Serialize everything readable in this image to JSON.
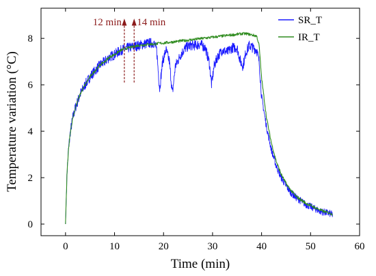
{
  "chart_data": {
    "type": "line",
    "title": "",
    "xlabel": "Time (min)",
    "ylabel": "Temperature variation (°C)",
    "xlim": [
      -5,
      60
    ],
    "ylim": [
      -0.5,
      9.3
    ],
    "xticks": [
      "0",
      "10",
      "20",
      "30",
      "40",
      "50",
      "60"
    ],
    "xtick_values": [
      0,
      10,
      20,
      30,
      40,
      50,
      60
    ],
    "yticks": [
      "0",
      "2",
      "4",
      "6",
      "8"
    ],
    "ytick_values": [
      0,
      2,
      4,
      6,
      8
    ],
    "grid": false,
    "legend_position": "top-right",
    "series": [
      {
        "name": "SR_T",
        "color": "#1a1aff",
        "style": "noisy",
        "x": [
          0,
          0.3,
          0.6,
          1,
          1.5,
          2,
          3,
          4,
          5,
          6,
          7,
          8,
          9,
          10,
          11,
          12,
          13,
          14,
          15,
          16,
          17,
          18,
          18.6,
          19.2,
          19.8,
          20.5,
          21.2,
          21.8,
          22.4,
          23.5,
          24.5,
          25.5,
          26.5,
          27.5,
          28.5,
          29.3,
          29.8,
          30.3,
          31,
          32,
          33,
          34,
          35,
          35.7,
          36.2,
          36.8,
          37.5,
          38.2,
          39,
          39.5,
          40,
          41,
          42,
          43,
          44,
          45,
          46,
          47,
          48,
          49,
          50,
          51,
          52,
          53,
          54,
          54.5
        ],
        "y": [
          0,
          2.2,
          3.2,
          4.0,
          4.6,
          5.0,
          5.6,
          6.0,
          6.35,
          6.6,
          6.85,
          7.0,
          7.2,
          7.3,
          7.45,
          7.55,
          7.6,
          7.65,
          7.7,
          7.75,
          7.8,
          7.8,
          7.5,
          5.8,
          7.0,
          7.5,
          7.0,
          5.6,
          6.8,
          7.3,
          7.6,
          7.7,
          7.7,
          7.75,
          7.6,
          7.0,
          6.0,
          6.8,
          7.2,
          7.5,
          7.4,
          7.6,
          7.6,
          7.0,
          6.8,
          7.4,
          7.7,
          7.6,
          7.5,
          7.0,
          5.5,
          4.2,
          3.2,
          2.5,
          2.0,
          1.65,
          1.35,
          1.15,
          1.0,
          0.85,
          0.75,
          0.65,
          0.55,
          0.5,
          0.45,
          0.4
        ]
      },
      {
        "name": "IR_T",
        "color": "#2e8b1e",
        "style": "smooth",
        "x": [
          0,
          0.3,
          0.6,
          1,
          1.5,
          2,
          3,
          4,
          5,
          6,
          7,
          8,
          9,
          10,
          11,
          12,
          13,
          14,
          15,
          16,
          17,
          18,
          19,
          20,
          22,
          24,
          26,
          28,
          30,
          32,
          34,
          36,
          37,
          38,
          39,
          39.5,
          40,
          41,
          42,
          43,
          44,
          45,
          46,
          47,
          48,
          49,
          50,
          51,
          52,
          53,
          54,
          54.5
        ],
        "y": [
          0,
          2.2,
          3.2,
          4.0,
          4.6,
          5.0,
          5.6,
          6.0,
          6.35,
          6.6,
          6.85,
          7.0,
          7.2,
          7.3,
          7.45,
          7.55,
          7.6,
          7.65,
          7.7,
          7.72,
          7.75,
          7.75,
          7.78,
          7.8,
          7.85,
          7.9,
          7.95,
          8.0,
          8.05,
          8.1,
          8.15,
          8.2,
          8.2,
          8.15,
          8.1,
          7.7,
          6.3,
          4.6,
          3.5,
          2.7,
          2.15,
          1.75,
          1.45,
          1.2,
          1.05,
          0.9,
          0.8,
          0.7,
          0.6,
          0.52,
          0.47,
          0.42
        ]
      }
    ],
    "annotations": [
      {
        "text": "12 min",
        "x": 12
      },
      {
        "text": "14 min",
        "x": 14
      }
    ],
    "annotation_color": "#8b1a1a"
  }
}
